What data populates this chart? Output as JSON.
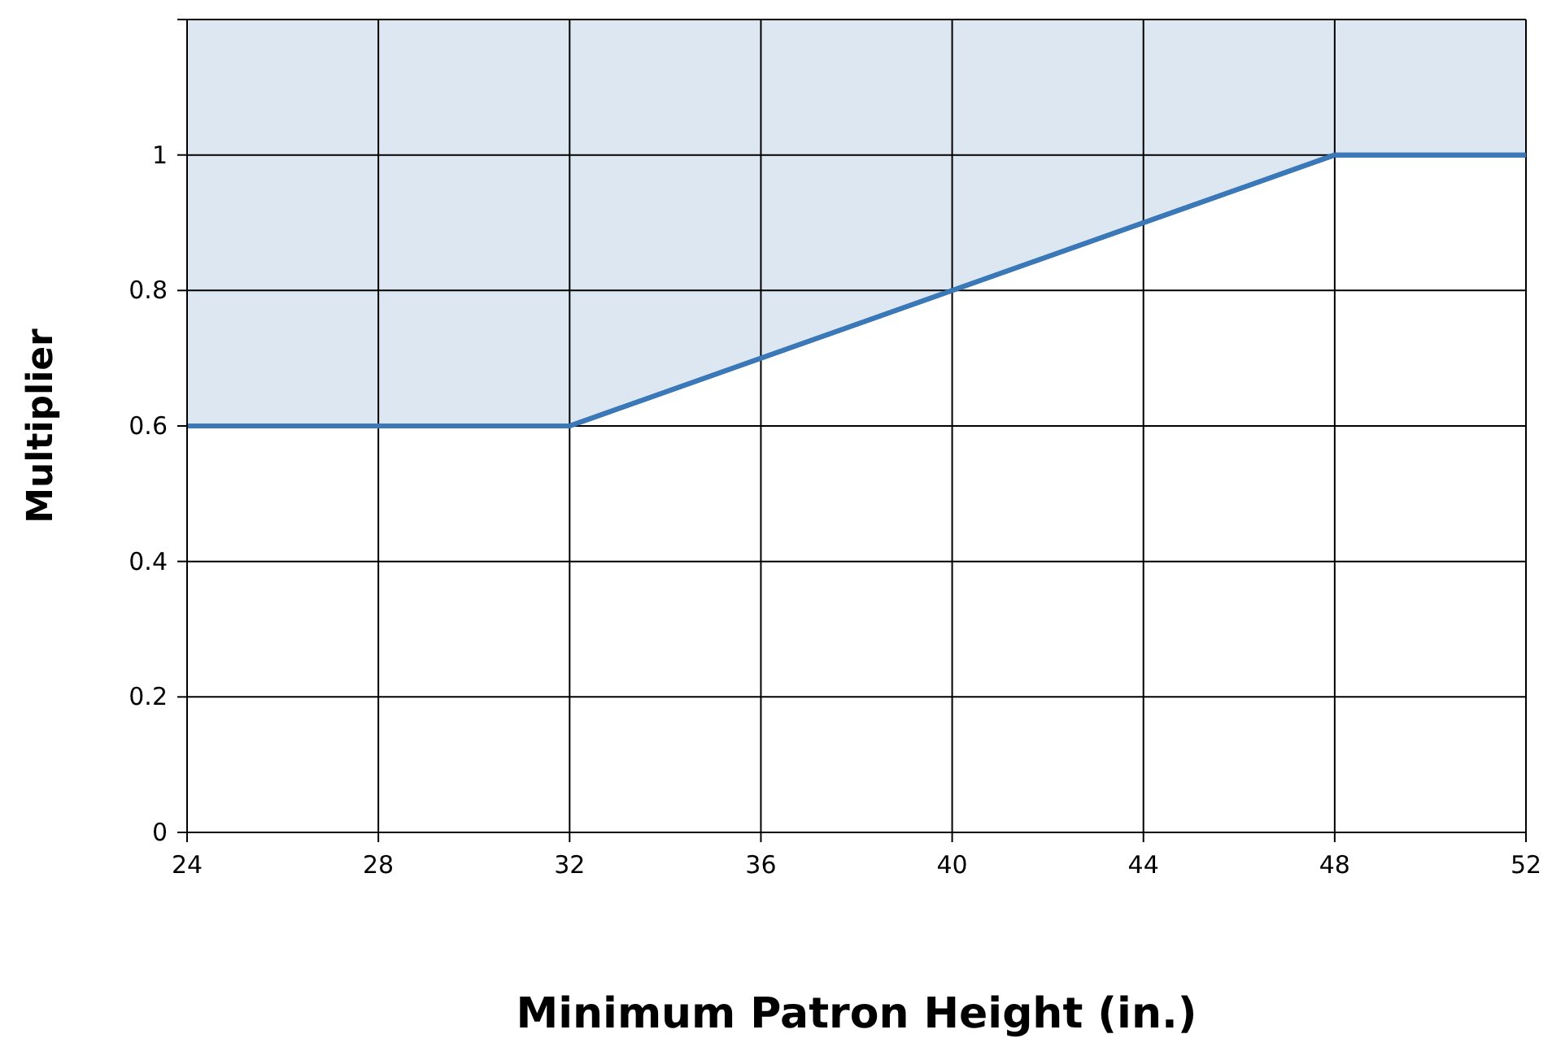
{
  "chart_data": {
    "type": "line",
    "xlabel": "Minimum Patron Height (in.)",
    "ylabel": "Multiplier",
    "x": [
      24,
      32,
      48,
      52
    ],
    "series": [
      {
        "color": "#3b78b8",
        "values": [
          0.6,
          0.6,
          1,
          1
        ],
        "lower": [
          0.6,
          0.6,
          1,
          1
        ],
        "upper": [
          1.2,
          1.2,
          1.2,
          1.2
        ]
      }
    ],
    "xlim": [
      24,
      52
    ],
    "xticks": [
      24,
      28,
      32,
      36,
      40,
      44,
      48,
      52
    ],
    "ylim": [
      0,
      1.2
    ],
    "yticks": [
      0,
      0.2,
      0.4,
      0.6,
      0.8,
      1,
      {
        "value": 1.2,
        "label": null
      }
    ],
    "grid": true,
    "marker": "none",
    "line_style": "solid"
  }
}
